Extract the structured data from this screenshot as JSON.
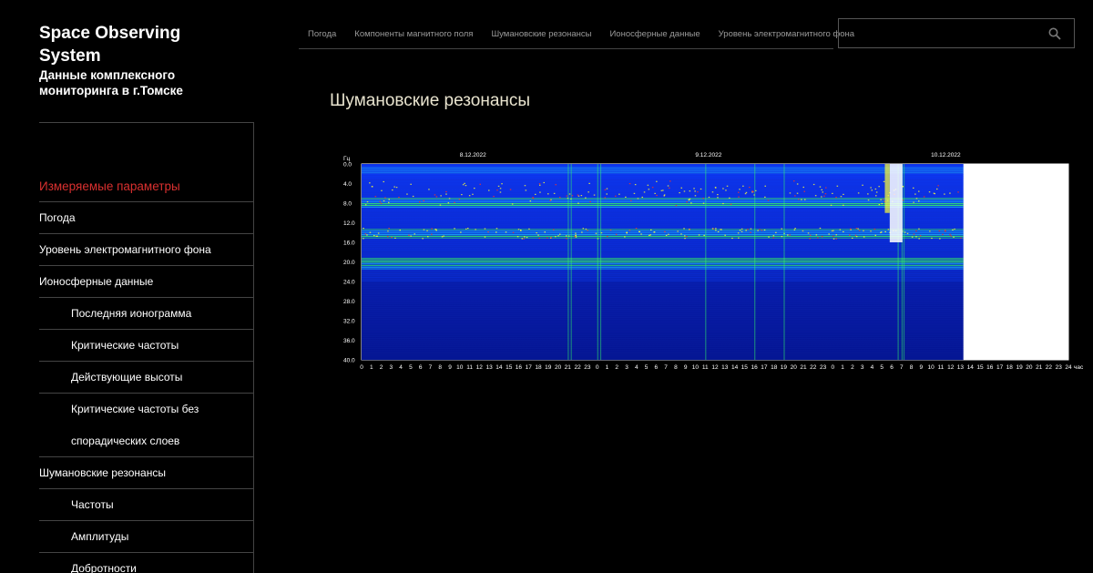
{
  "site": {
    "title": "Space Observing System",
    "subtitle": "Данные комплексного мониторинга в г.Томске"
  },
  "topnav": {
    "items": [
      "Погода",
      "Компоненты магнитного поля",
      "Шумановские резонансы",
      "Ионосферные данные",
      "Уровень электромагнитного фона"
    ]
  },
  "search": {
    "value": "",
    "placeholder": "",
    "icon": "search-icon"
  },
  "sidebar": {
    "heading": "Измеряемые параметры",
    "items": [
      {
        "label": "Погода"
      },
      {
        "label": "Уровень электромагнитного фона"
      },
      {
        "label": "Ионосферные данные"
      },
      {
        "label": "Последняя ионограмма"
      },
      {
        "label": "Критические частоты"
      },
      {
        "label": "Действующие высоты"
      },
      {
        "label": "Критические частоты без спорадических слоев"
      },
      {
        "label": "Шумановские резонансы"
      },
      {
        "label": "Частоты"
      },
      {
        "label": "Амплитуды"
      },
      {
        "label": "Добротности"
      }
    ]
  },
  "main": {
    "title": "Шумановские резонансы"
  },
  "colors": {
    "accent": "#d9302f",
    "background": "#000000",
    "title": "#e9e4cf",
    "nav_text": "#9a9a9a"
  },
  "chart_data": {
    "type": "heatmap",
    "title": "",
    "ylabel": "Гц",
    "xlabel": "час",
    "date_labels": [
      "8.12.2022",
      "9.12.2022",
      "10.12.2022"
    ],
    "y_ticks": [
      "0.0",
      "4.0",
      "8.0",
      "12.0",
      "16.0",
      "20.0",
      "24.0",
      "28.0",
      "32.0",
      "36.0",
      "40.0"
    ],
    "ylim": [
      0,
      40
    ],
    "x_ticks": [
      "0",
      "1",
      "2",
      "3",
      "4",
      "5",
      "6",
      "7",
      "8",
      "9",
      "10",
      "11",
      "12",
      "13",
      "14",
      "15",
      "16",
      "17",
      "18",
      "19",
      "20",
      "21",
      "22",
      "23",
      "0",
      "1",
      "2",
      "3",
      "4",
      "5",
      "6",
      "7",
      "8",
      "9",
      "10",
      "11",
      "12",
      "13",
      "14",
      "15",
      "16",
      "17",
      "18",
      "19",
      "20",
      "21",
      "22",
      "23",
      "0",
      "1",
      "2",
      "3",
      "4",
      "5",
      "6",
      "7",
      "8",
      "9",
      "10",
      "11",
      "12",
      "13",
      "14",
      "15",
      "16",
      "17",
      "18",
      "19",
      "20",
      "21",
      "22",
      "23",
      "24"
    ],
    "data_end_hour": 61.3,
    "resonance_bands_hz": [
      7.8,
      14.1,
      20.3
    ],
    "colormap": [
      "#000a8c",
      "#0a3cff",
      "#19b4ff",
      "#33ff66",
      "#ffff33",
      "#ff3322",
      "#ffffff"
    ]
  }
}
